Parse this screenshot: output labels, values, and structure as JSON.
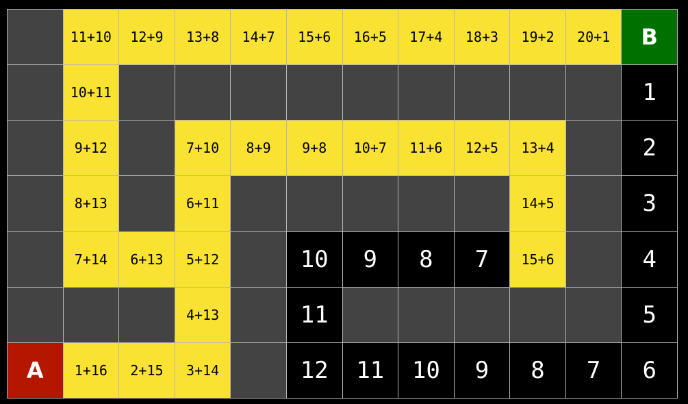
{
  "colors": {
    "wall": "#434343",
    "open": "#f9e231",
    "distance": "#000000",
    "start": "#b51600",
    "goal": "#007000",
    "gridline": "#b5b5b5"
  },
  "grid": [
    [
      {
        "t": "wall"
      },
      {
        "t": "open",
        "v": "11+10"
      },
      {
        "t": "open",
        "v": "12+9"
      },
      {
        "t": "open",
        "v": "13+8"
      },
      {
        "t": "open",
        "v": "14+7"
      },
      {
        "t": "open",
        "v": "15+6"
      },
      {
        "t": "open",
        "v": "16+5"
      },
      {
        "t": "open",
        "v": "17+4"
      },
      {
        "t": "open",
        "v": "18+3"
      },
      {
        "t": "open",
        "v": "19+2"
      },
      {
        "t": "open",
        "v": "20+1"
      },
      {
        "t": "goal",
        "v": "B"
      }
    ],
    [
      {
        "t": "wall"
      },
      {
        "t": "open",
        "v": "10+11"
      },
      {
        "t": "wall"
      },
      {
        "t": "wall"
      },
      {
        "t": "wall"
      },
      {
        "t": "wall"
      },
      {
        "t": "wall"
      },
      {
        "t": "wall"
      },
      {
        "t": "wall"
      },
      {
        "t": "wall"
      },
      {
        "t": "wall"
      },
      {
        "t": "dist",
        "v": "1"
      }
    ],
    [
      {
        "t": "wall"
      },
      {
        "t": "open",
        "v": "9+12"
      },
      {
        "t": "wall"
      },
      {
        "t": "open",
        "v": "7+10"
      },
      {
        "t": "open",
        "v": "8+9"
      },
      {
        "t": "open",
        "v": "9+8"
      },
      {
        "t": "open",
        "v": "10+7"
      },
      {
        "t": "open",
        "v": "11+6"
      },
      {
        "t": "open",
        "v": "12+5"
      },
      {
        "t": "open",
        "v": "13+4"
      },
      {
        "t": "wall"
      },
      {
        "t": "dist",
        "v": "2"
      }
    ],
    [
      {
        "t": "wall"
      },
      {
        "t": "open",
        "v": "8+13"
      },
      {
        "t": "wall"
      },
      {
        "t": "open",
        "v": "6+11"
      },
      {
        "t": "wall"
      },
      {
        "t": "wall"
      },
      {
        "t": "wall"
      },
      {
        "t": "wall"
      },
      {
        "t": "wall"
      },
      {
        "t": "open",
        "v": "14+5"
      },
      {
        "t": "wall"
      },
      {
        "t": "dist",
        "v": "3"
      }
    ],
    [
      {
        "t": "wall"
      },
      {
        "t": "open",
        "v": "7+14"
      },
      {
        "t": "open",
        "v": "6+13"
      },
      {
        "t": "open",
        "v": "5+12"
      },
      {
        "t": "wall"
      },
      {
        "t": "dist",
        "v": "10"
      },
      {
        "t": "dist",
        "v": "9"
      },
      {
        "t": "dist",
        "v": "8"
      },
      {
        "t": "dist",
        "v": "7"
      },
      {
        "t": "open",
        "v": "15+6"
      },
      {
        "t": "wall"
      },
      {
        "t": "dist",
        "v": "4"
      }
    ],
    [
      {
        "t": "wall"
      },
      {
        "t": "wall"
      },
      {
        "t": "wall"
      },
      {
        "t": "open",
        "v": "4+13"
      },
      {
        "t": "wall"
      },
      {
        "t": "dist",
        "v": "11"
      },
      {
        "t": "wall"
      },
      {
        "t": "wall"
      },
      {
        "t": "wall"
      },
      {
        "t": "wall"
      },
      {
        "t": "wall"
      },
      {
        "t": "dist",
        "v": "5"
      }
    ],
    [
      {
        "t": "start",
        "v": "A"
      },
      {
        "t": "open",
        "v": "1+16"
      },
      {
        "t": "open",
        "v": "2+15"
      },
      {
        "t": "open",
        "v": "3+14"
      },
      {
        "t": "wall"
      },
      {
        "t": "dist",
        "v": "12"
      },
      {
        "t": "dist",
        "v": "11"
      },
      {
        "t": "dist",
        "v": "10"
      },
      {
        "t": "dist",
        "v": "9"
      },
      {
        "t": "dist",
        "v": "8"
      },
      {
        "t": "dist",
        "v": "7"
      },
      {
        "t": "dist",
        "v": "6"
      }
    ]
  ]
}
